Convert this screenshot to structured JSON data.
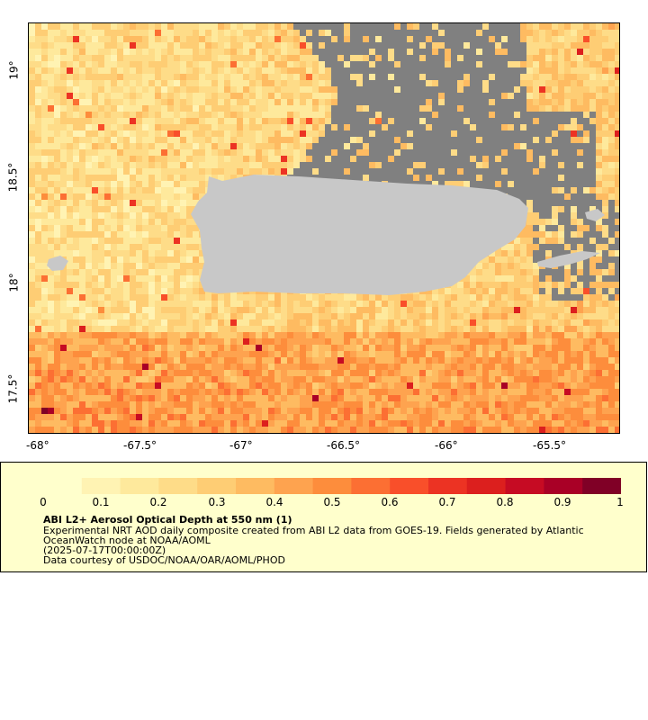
{
  "map": {
    "x_ticks": [
      "-68°",
      "-67.5°",
      "-67°",
      "-66.5°",
      "-66°",
      "-65.5°"
    ],
    "y_ticks": [
      "19°",
      "18.5°",
      "18°",
      "17.5°"
    ],
    "land_color": "#c8c8c8",
    "cloud_color": "#808080",
    "extent": {
      "lon": [
        -68.05,
        -65.2
      ],
      "lat": [
        17.25,
        19.22
      ]
    }
  },
  "colorbar": {
    "ticks": [
      "0",
      "0.1",
      "0.2",
      "0.3",
      "0.4",
      "0.5",
      "0.6",
      "0.7",
      "0.8",
      "0.9",
      "1"
    ],
    "colors": [
      "#ffffcc",
      "#fff3b3",
      "#fee99c",
      "#fedc88",
      "#fecd74",
      "#febb61",
      "#fea34f",
      "#fd8d3c",
      "#fc6f33",
      "#f94f2a",
      "#ec3323",
      "#dc1f1e",
      "#c60b23",
      "#a90026",
      "#800026"
    ]
  },
  "info": {
    "title": "ABI L2+ Aerosol Optical Depth at 550 nm (1)",
    "line1": "Experimental NRT AOD daily composite created from ABI L2 data from GOES-19. Fields generated by Atlantic",
    "line2": "OceanWatch node at NOAA/AOML",
    "line3": "(2025-07-17T00:00:00Z)",
    "line4": "Data courtesy of USDOC/NOAA/OAR/AOML/PHOD"
  }
}
